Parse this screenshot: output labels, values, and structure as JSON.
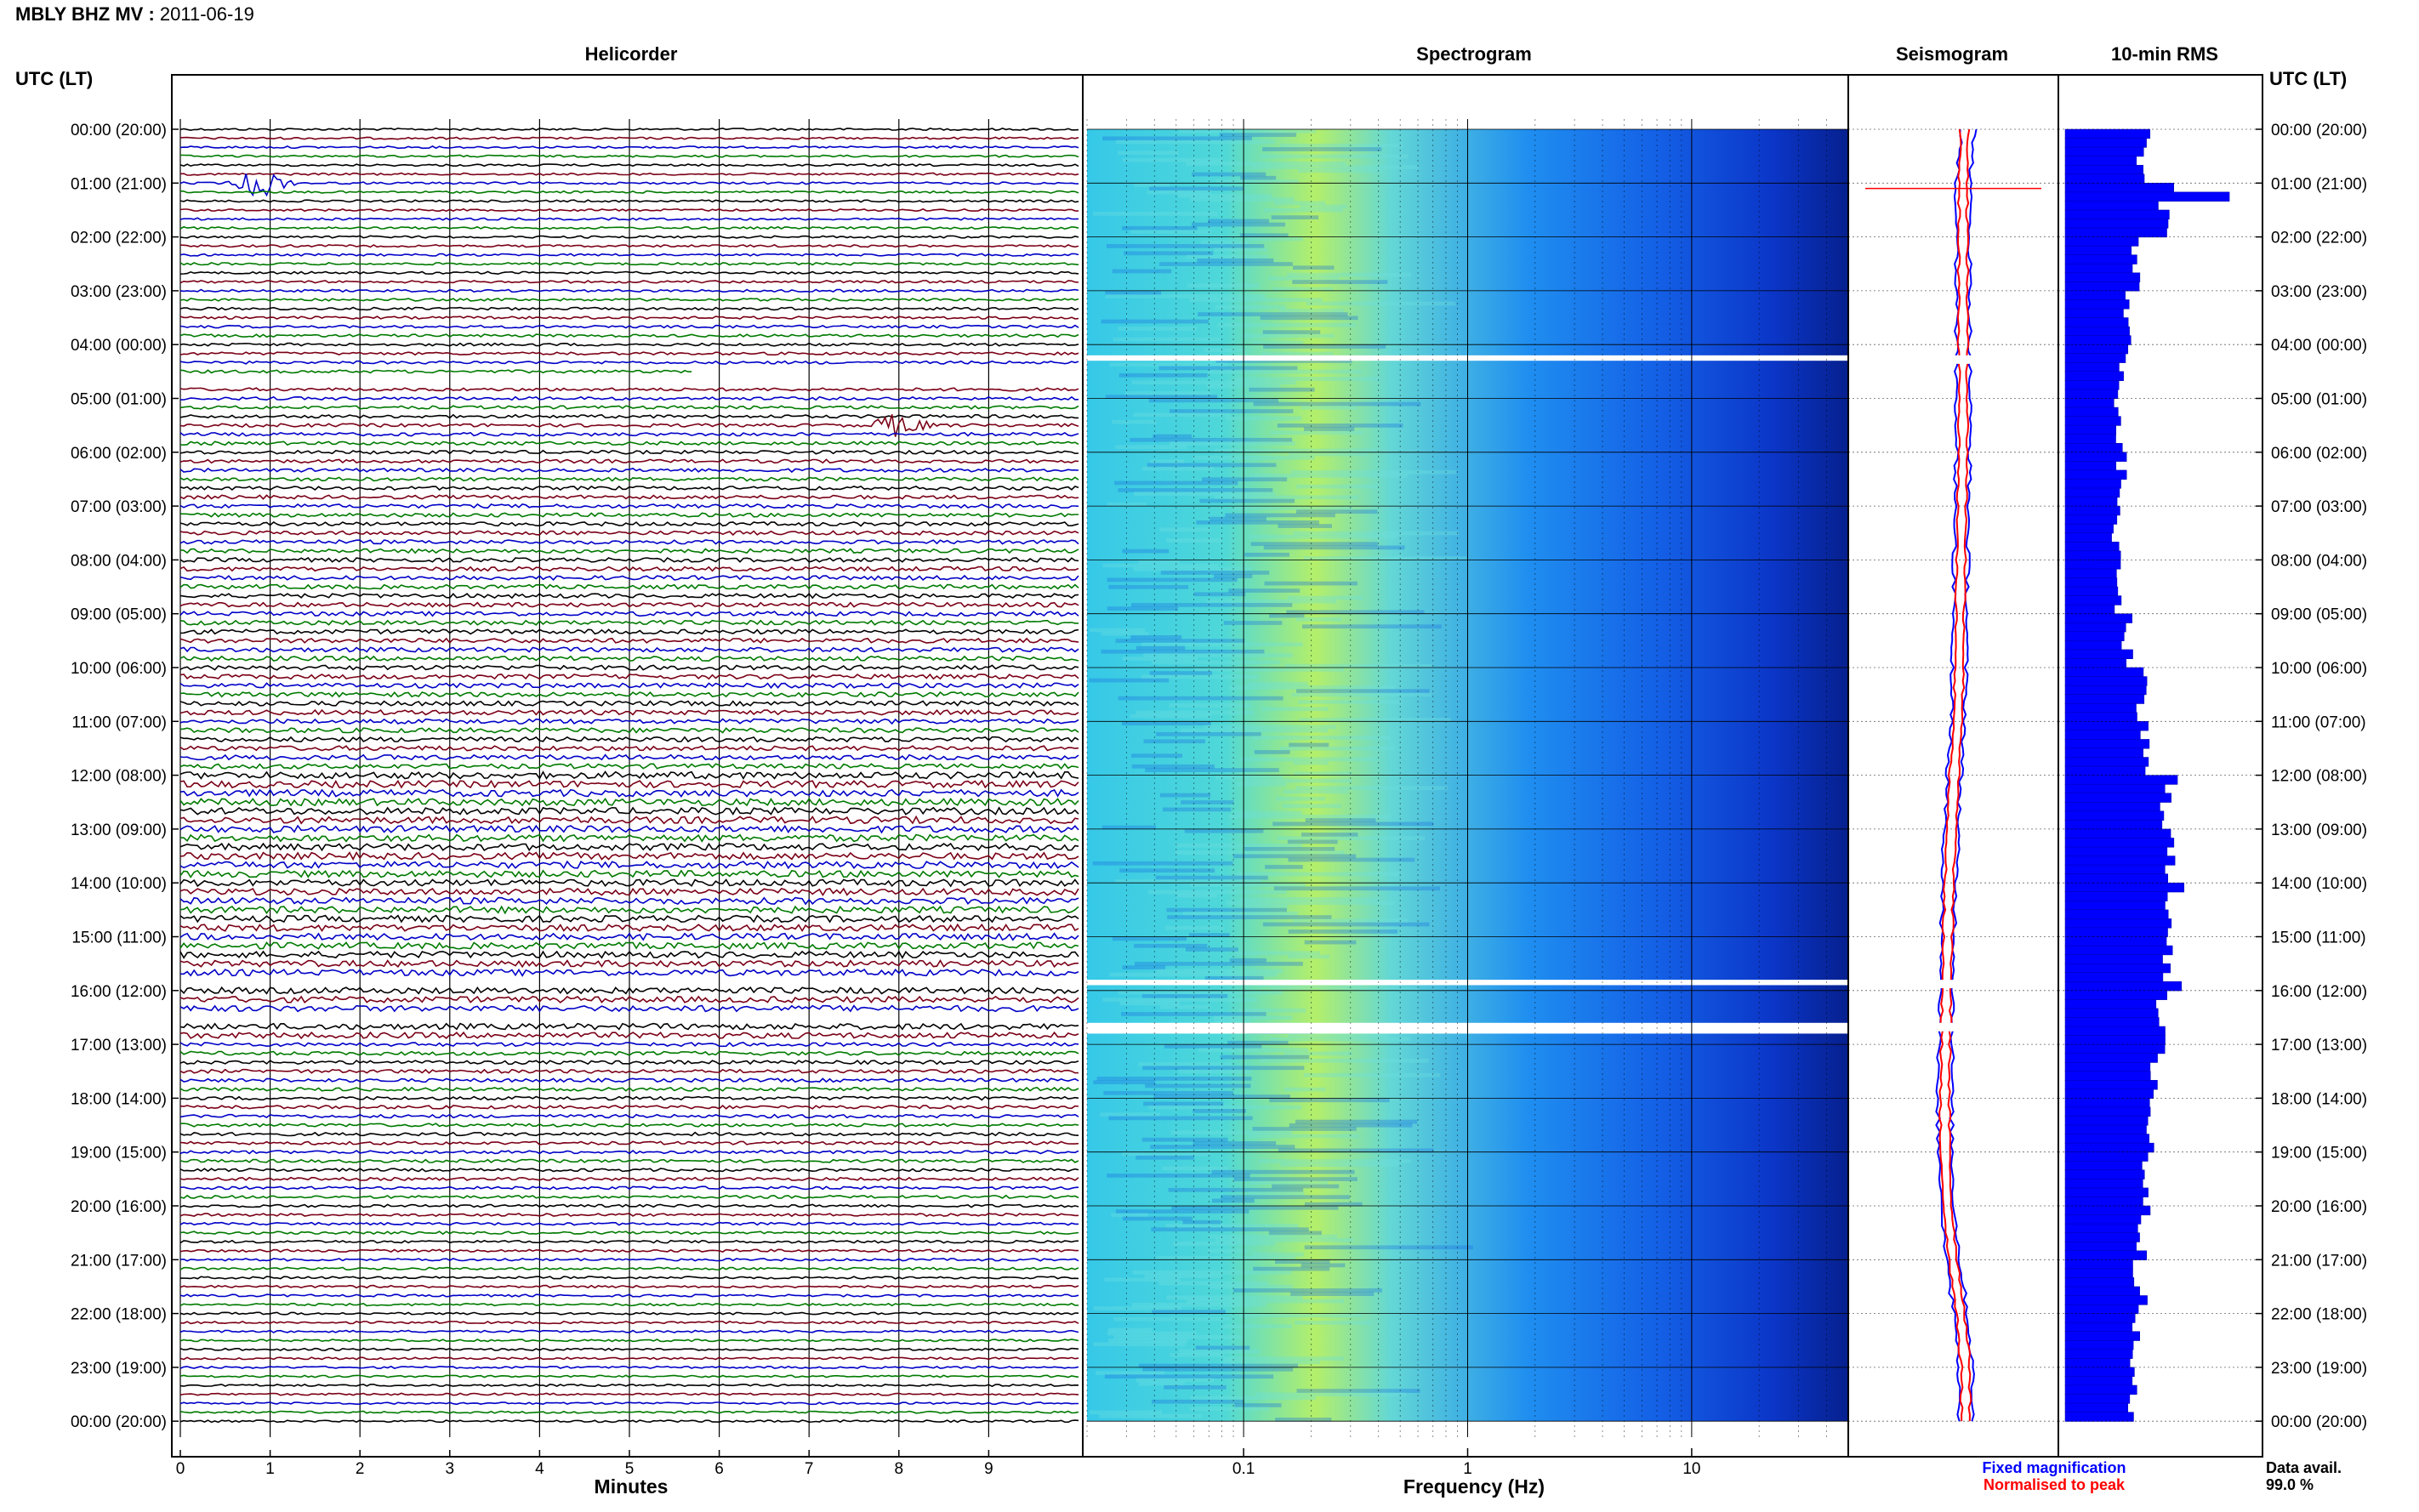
{
  "header": {
    "station": "MBLY BHZ MV",
    "separator": " : ",
    "date": "2011-06-19"
  },
  "panels": {
    "helicorder": "Helicorder",
    "spectrogram": "Spectrogram",
    "seismogram": "Seismogram",
    "rms": "10-min RMS"
  },
  "axis": {
    "time_title_left": "UTC (LT)",
    "time_title_right": "UTC (LT)",
    "minutes_label": "Minutes",
    "frequency_label": "Frequency (Hz)"
  },
  "legend": {
    "fixed": "Fixed magnification",
    "normalised": "Normalised to peak",
    "fixed_color": "#0000ff",
    "normalised_color": "#ff0000"
  },
  "data_avail": {
    "label": "Data avail.",
    "value": "99.0 %"
  },
  "colors": {
    "trace_cycle": [
      "#000000",
      "#7a0016",
      "#0000c8",
      "#007a00"
    ],
    "spectrogram_low": "#00008c",
    "spectrogram_high": "#ffff00",
    "rms_bar": "#0000ff"
  },
  "chart_data": [
    {
      "type": "line",
      "name": "helicorder",
      "x_label": "Minutes",
      "x_ticks": [
        0,
        1,
        2,
        3,
        4,
        5,
        6,
        7,
        8,
        9
      ],
      "xlim": [
        0,
        10
      ],
      "lines_per_hour": 6,
      "hours": 24,
      "y_tick_labels": [
        "00:00 (20:00)",
        "01:00 (21:00)",
        "02:00 (22:00)",
        "03:00 (23:00)",
        "04:00 (00:00)",
        "05:00 (01:00)",
        "06:00 (02:00)",
        "07:00 (03:00)",
        "08:00 (04:00)",
        "09:00 (05:00)",
        "10:00 (06:00)",
        "11:00 (07:00)",
        "12:00 (08:00)",
        "13:00 (09:00)",
        "14:00 (10:00)",
        "15:00 (11:00)",
        "16:00 (12:00)",
        "17:00 (13:00)",
        "18:00 (14:00)",
        "19:00 (15:00)",
        "20:00 (16:00)",
        "21:00 (17:00)",
        "22:00 (18:00)",
        "23:00 (19:00)",
        "00:00 (20:00)"
      ],
      "data_gaps": [
        {
          "hour": 4,
          "line": 3,
          "from_min": 5.7,
          "to_min": 10
        },
        {
          "hour": 4,
          "line": 4,
          "from_min": 0,
          "to_min": 10
        },
        {
          "hour": 15,
          "line": 5,
          "from_min": 0,
          "to_min": 10
        },
        {
          "hour": 16,
          "line": 3,
          "from_min": 0,
          "to_min": 10
        }
      ],
      "events": [
        {
          "hour": 1,
          "line": 0,
          "minute": 0.9,
          "amplitude": 3.5
        },
        {
          "hour": 5,
          "line": 3,
          "minute": 8.0,
          "amplitude": 1.8
        }
      ]
    },
    {
      "type": "heatmap",
      "name": "spectrogram",
      "x_label": "Frequency (Hz)",
      "x_scale": "log",
      "xlim": [
        0.02,
        50
      ],
      "x_tick_labels": [
        "0.1",
        "1",
        "10"
      ],
      "x_tick_values": [
        0.1,
        1,
        10
      ],
      "gaps_hours": [
        [
          4.2,
          4.3
        ],
        [
          15.8,
          15.9
        ],
        [
          16.6,
          16.8
        ]
      ]
    },
    {
      "type": "area",
      "name": "10-min RMS",
      "x": [
        "00",
        "01",
        "02",
        "03",
        "04",
        "05",
        "06",
        "07",
        "08",
        "09",
        "10",
        "11",
        "12",
        "13",
        "14",
        "15",
        "16",
        "17",
        "18",
        "19",
        "20",
        "21",
        "22",
        "23"
      ],
      "values": [
        0.42,
        0.55,
        0.37,
        0.34,
        0.31,
        0.28,
        0.3,
        0.27,
        0.28,
        0.33,
        0.4,
        0.42,
        0.56,
        0.55,
        0.58,
        0.57,
        0.5,
        0.49,
        0.45,
        0.44,
        0.42,
        0.4,
        0.37,
        0.35
      ]
    },
    {
      "type": "line",
      "name": "seismogram",
      "series": [
        {
          "name": "Fixed magnification",
          "values": [
            0.2,
            0.0,
            0.0,
            0.0,
            0.0,
            0.0,
            0.0,
            -0.05,
            -0.08,
            -0.12,
            -0.15,
            -0.2,
            -0.35,
            -0.45,
            -0.55,
            -0.6,
            -0.65,
            -0.68,
            -0.72,
            -0.7,
            -0.62,
            -0.4,
            -0.1,
            0.1,
            0.1
          ]
        },
        {
          "name": "Normalised to peak",
          "values": [
            0.05,
            0.0,
            0.0,
            0.0,
            0.0,
            0.0,
            0.0,
            -0.05,
            -0.08,
            -0.12,
            -0.15,
            -0.2,
            -0.35,
            -0.45,
            -0.55,
            -0.6,
            -0.65,
            -0.68,
            -0.72,
            -0.7,
            -0.62,
            -0.4,
            -0.1,
            0.1,
            0.1
          ]
        }
      ]
    }
  ]
}
